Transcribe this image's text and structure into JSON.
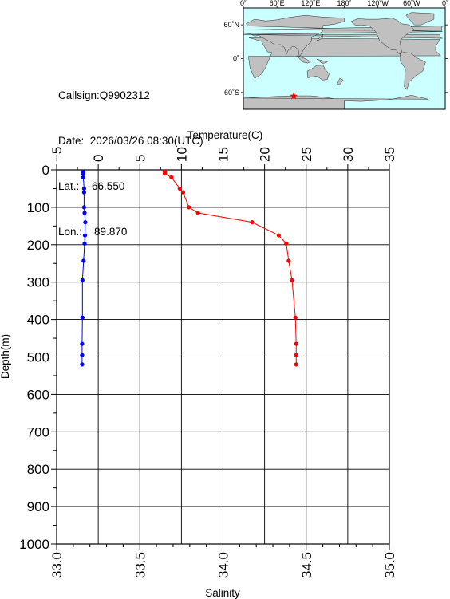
{
  "station": {
    "callsign_label": "Callsign:",
    "callsign": "Q9902312",
    "date_label": "Date:",
    "date": "2026/03/26 08:30(UTC)",
    "lat_label": "Lat.:",
    "lat": "-66.550",
    "lon_label": "Lon.:",
    "lon": "89.870"
  },
  "map": {
    "lon_labels": [
      "0˚",
      "60˚E",
      "120˚E",
      "180˚",
      "120˚W",
      "60˚W",
      "0˚"
    ],
    "lat_labels": [
      "60˚N",
      "0˚",
      "60˚S"
    ],
    "marker_lon": 89.87,
    "marker_lat": -66.55,
    "ocean_color": "#ccffff",
    "land_color": "#c0c0c0",
    "marker_color": "#ff0000",
    "marker_icon": "star-icon"
  },
  "chart_data": {
    "type": "line",
    "ylabel": "Depth(m)",
    "ylim": [
      1000,
      0
    ],
    "y_ticks": [
      "0",
      "100",
      "200",
      "300",
      "400",
      "500",
      "600",
      "700",
      "800",
      "900",
      "1000"
    ],
    "temperature_axis": {
      "label": "Temperature(C)",
      "position": "top",
      "range": [
        -5,
        35
      ],
      "ticks": [
        "−5",
        "0",
        "5",
        "10",
        "15",
        "20",
        "25",
        "30",
        "35"
      ]
    },
    "salinity_axis": {
      "label": "Salinity",
      "position": "bottom",
      "range": [
        33.0,
        35.0
      ],
      "ticks": [
        "33.0",
        "33.5",
        "34.0",
        "34.5",
        "35.0"
      ]
    },
    "grid": true,
    "series": [
      {
        "axis": "temperature",
        "color": "#ff0000",
        "points": [
          {
            "depth": 5,
            "value": 8.0
          },
          {
            "depth": 10,
            "value": 8.0
          },
          {
            "depth": 20,
            "value": 8.8
          },
          {
            "depth": 50,
            "value": 9.8
          },
          {
            "depth": 60,
            "value": 10.2
          },
          {
            "depth": 100,
            "value": 10.9
          },
          {
            "depth": 115,
            "value": 12.0
          },
          {
            "depth": 140,
            "value": 18.5
          },
          {
            "depth": 175,
            "value": 21.7
          },
          {
            "depth": 197,
            "value": 22.6
          },
          {
            "depth": 243,
            "value": 22.9
          },
          {
            "depth": 295,
            "value": 23.3
          },
          {
            "depth": 395,
            "value": 23.7
          },
          {
            "depth": 465,
            "value": 23.8
          },
          {
            "depth": 495,
            "value": 23.8
          },
          {
            "depth": 520,
            "value": 23.8
          }
        ]
      },
      {
        "axis": "salinity",
        "color": "#0000ff",
        "points": [
          {
            "depth": 5,
            "value": 33.16
          },
          {
            "depth": 10,
            "value": 33.16
          },
          {
            "depth": 20,
            "value": 33.16
          },
          {
            "depth": 50,
            "value": 33.165
          },
          {
            "depth": 60,
            "value": 33.165
          },
          {
            "depth": 100,
            "value": 33.165
          },
          {
            "depth": 115,
            "value": 33.168
          },
          {
            "depth": 140,
            "value": 33.172
          },
          {
            "depth": 175,
            "value": 33.17
          },
          {
            "depth": 197,
            "value": 33.168
          },
          {
            "depth": 243,
            "value": 33.162
          },
          {
            "depth": 295,
            "value": 33.155
          },
          {
            "depth": 395,
            "value": 33.155
          },
          {
            "depth": 465,
            "value": 33.153
          },
          {
            "depth": 495,
            "value": 33.153
          },
          {
            "depth": 520,
            "value": 33.153
          }
        ]
      }
    ]
  }
}
